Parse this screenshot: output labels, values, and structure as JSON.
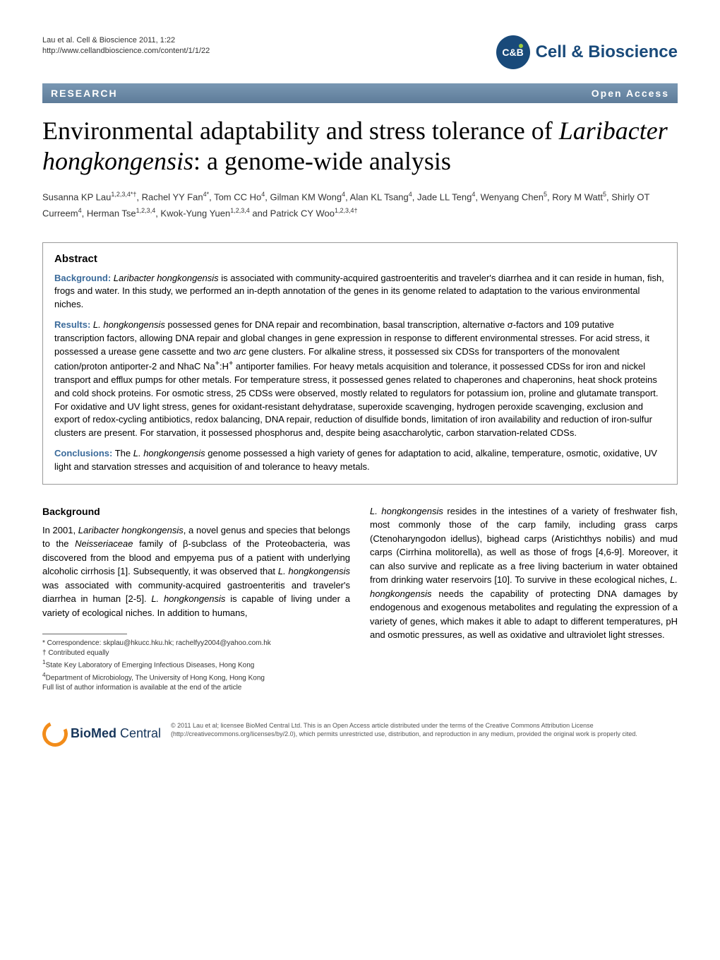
{
  "header": {
    "citation_line1": "Lau et al. Cell & Bioscience 2011, 1:22",
    "citation_line2": "http://www.cellandbioscience.com/content/1/1/22",
    "journal_logo_initials": "C&B",
    "journal_name": "Cell & Bioscience"
  },
  "banner": {
    "left": "RESEARCH",
    "right": "Open Access"
  },
  "title": {
    "pre": "Environmental adaptability and stress tolerance of ",
    "species": "Laribacter hongkongensis",
    "post": ": a genome-wide analysis"
  },
  "authors_html": "Susanna KP Lau<sup>1,2,3,4*†</sup>, Rachel YY Fan<sup>4*</sup>, Tom CC Ho<sup>4</sup>, Gilman KM Wong<sup>4</sup>, Alan KL Tsang<sup>4</sup>, Jade LL Teng<sup>4</sup>, Wenyang Chen<sup>5</sup>, Rory M Watt<sup>5</sup>, Shirly OT Curreem<sup>4</sup>, Herman Tse<sup>1,2,3,4</sup>, Kwok-Yung Yuen<sup>1,2,3,4</sup> and Patrick CY Woo<sup>1,2,3,4†</sup>",
  "abstract": {
    "heading": "Abstract",
    "background": {
      "label": "Background:",
      "text": " Laribacter hongkongensis is associated with community-acquired gastroenteritis and traveler's diarrhea and it can reside in human, fish, frogs and water. In this study, we performed an in-depth annotation of the genes in its genome related to adaptation to the various environmental niches."
    },
    "results": {
      "label": "Results:",
      "text": " L. hongkongensis possessed genes for DNA repair and recombination, basal transcription, alternative σ-factors and 109 putative transcription factors, allowing DNA repair and global changes in gene expression in response to different environmental stresses. For acid stress, it possessed a urease gene cassette and two arc gene clusters. For alkaline stress, it possessed six CDSs for transporters of the monovalent cation/proton antiporter-2 and NhaC Na+:H+ antiporter families. For heavy metals acquisition and tolerance, it possessed CDSs for iron and nickel transport and efflux pumps for other metals. For temperature stress, it possessed genes related to chaperones and chaperonins, heat shock proteins and cold shock proteins. For osmotic stress, 25 CDSs were observed, mostly related to regulators for potassium ion, proline and glutamate transport. For oxidative and UV light stress, genes for oxidant-resistant dehydratase, superoxide scavenging, hydrogen peroxide scavenging, exclusion and export of redox-cycling antibiotics, redox balancing, DNA repair, reduction of disulfide bonds, limitation of iron availability and reduction of iron-sulfur clusters are present. For starvation, it possessed phosphorus and, despite being asaccharolytic, carbon starvation-related CDSs."
    },
    "conclusions": {
      "label": "Conclusions:",
      "text": " The L. hongkongensis genome possessed a high variety of genes for adaptation to acid, alkaline, temperature, osmotic, oxidative, UV light and starvation stresses and acquisition of and tolerance to heavy metals."
    }
  },
  "body": {
    "heading": "Background",
    "left_para": "In 2001, Laribacter hongkongensis, a novel genus and species that belongs to the Neisseriaceae family of β-subclass of the Proteobacteria, was discovered from the blood and empyema pus of a patient with underlying alcoholic cirrhosis [1]. Subsequently, it was observed that L. hongkongensis was associated with community-acquired gastroenteritis and traveler's diarrhea in human [2-5]. L. hongkongensis is capable of living under a variety of ecological niches. In addition to humans,",
    "right_para": "L. hongkongensis resides in the intestines of a variety of freshwater fish, most commonly those of the carp family, including grass carps (Ctenoharyngodon idellus), bighead carps (Aristichthys nobilis) and mud carps (Cirrhina molitorella), as well as those of frogs [4,6-9]. Moreover, it can also survive and replicate as a free living bacterium in water obtained from drinking water reservoirs [10]. To survive in these ecological niches, L. hongkongensis needs the capability of protecting DNA damages by endogenous and exogenous metabolites and regulating the expression of a variety of genes, which makes it able to adapt to different temperatures, pH and osmotic pressures, as well as oxidative and ultraviolet light stresses."
  },
  "footnotes": {
    "correspondence": "* Correspondence: skplau@hkucc.hku.hk; rachelfyy2004@yahoo.com.hk",
    "contributed": "† Contributed equally",
    "aff1": "1State Key Laboratory of Emerging Infectious Diseases, Hong Kong",
    "aff4": "4Department of Microbiology, The University of Hong Kong, Hong Kong",
    "full_list": "Full list of author information is available at the end of the article"
  },
  "footer": {
    "bmc_name_bold": "BioMed",
    "bmc_name_light": " Central",
    "license": "© 2011 Lau et al; licensee BioMed Central Ltd. This is an Open Access article distributed under the terms of the Creative Commons Attribution License (http://creativecommons.org/licenses/by/2.0), which permits unrestricted use, distribution, and reproduction in any medium, provided the original work is properly cited."
  },
  "colors": {
    "banner_bg": "#6b8aa8",
    "abstract_label": "#3a6a9a",
    "logo_bg": "#194a7a",
    "bmc_orange": "#f28c1a",
    "bmc_navy": "#16355a"
  },
  "typography": {
    "title_fontsize": 36,
    "body_fontsize": 13,
    "footnote_fontsize": 10,
    "license_fontsize": 9
  }
}
